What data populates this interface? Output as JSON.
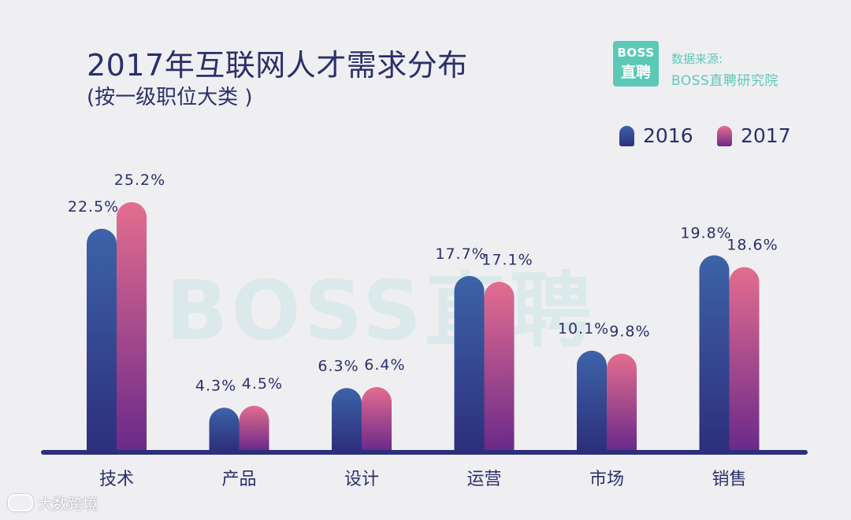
{
  "header": {
    "title": "2017年互联网人才需求分布",
    "subtitle": "(按一级职位大类 )"
  },
  "source": {
    "logo_top": "BOSS",
    "logo_bottom": "直聘",
    "label": "数据来源:",
    "name": "BOSS直聘研究院"
  },
  "watermark": {
    "text": "BOSS直聘",
    "corner_text": "大数跨境"
  },
  "colors": {
    "series_2016_top": "#3d63a8",
    "series_2016_bottom": "#2d2f7c",
    "series_2017_top": "#e46d8f",
    "series_2017_bottom": "#6b2a8a",
    "axis": "#2d2f7c",
    "text": "#2b2f6b",
    "brand": "#5cc9b7"
  },
  "chart_data": {
    "type": "bar",
    "title": "2017年互联网人才需求分布",
    "subtitle": "(按一级职位大类 )",
    "categories": [
      "技术",
      "产品",
      "设计",
      "运营",
      "市场",
      "销售"
    ],
    "series": [
      {
        "name": "2016",
        "values": [
          22.5,
          4.3,
          6.3,
          17.7,
          10.1,
          19.8
        ],
        "labels": [
          "22.5%",
          "4.3%",
          "6.3%",
          "17.7%",
          "10.1%",
          "19.8%"
        ]
      },
      {
        "name": "2017",
        "values": [
          25.2,
          4.5,
          6.4,
          17.1,
          9.8,
          18.6
        ],
        "labels": [
          "25.2%",
          "4.5%",
          "6.4%",
          "17.1%",
          "9.8%",
          "18.6%"
        ]
      }
    ],
    "unit": "%",
    "ylim": [
      0,
      27
    ],
    "grid": false,
    "legend_position": "top-right"
  }
}
